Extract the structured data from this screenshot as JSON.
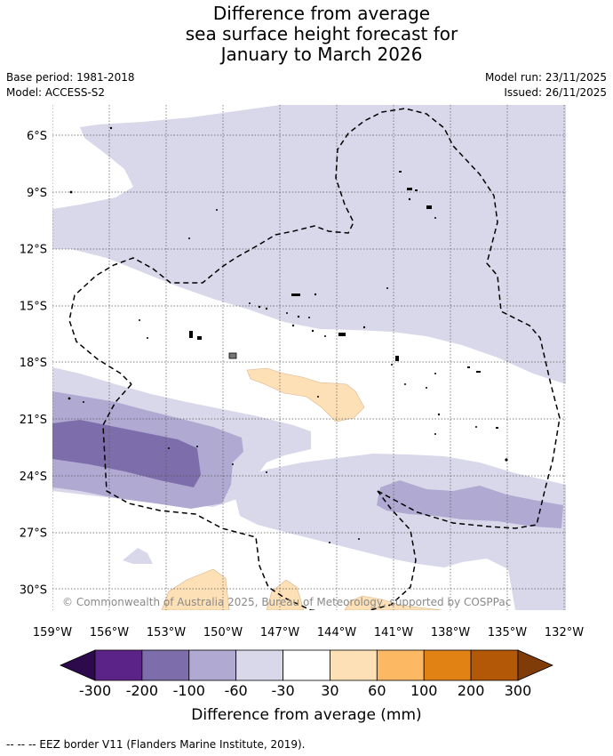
{
  "title_lines": [
    "Difference from average",
    "sea surface height forecast for",
    "January to March 2026"
  ],
  "base_period": "Base period: 1981-2018",
  "model": "Model: ACCESS-S2",
  "model_run": "Model run: 23/11/2025",
  "issued": "Issued: 26/11/2025",
  "copyright": "© Commonwealth of Australia 2025, Bureau of Meteorology, supported by COSPPac",
  "lat_labels": [
    "6°S",
    "9°S",
    "12°S",
    "15°S",
    "18°S",
    "21°S",
    "24°S",
    "27°S",
    "30°S"
  ],
  "lon_labels": [
    "159°W",
    "156°W",
    "153°W",
    "150°W",
    "147°W",
    "144°W",
    "141°W",
    "138°W",
    "135°W",
    "132°W"
  ],
  "colorbar": {
    "ticks": [
      "-300",
      "-200",
      "-100",
      "-60",
      "-30",
      "30",
      "60",
      "100",
      "200",
      "300"
    ],
    "colors": [
      "#2d0a4b",
      "#5b2388",
      "#7e6dab",
      "#b0a9d1",
      "#d8d8ea",
      "#ffffff",
      "#fee0b6",
      "#fdb863",
      "#e08214",
      "#b35806",
      "#7f3b08"
    ],
    "label": "Difference from average (mm)"
  },
  "footer": "--  --  -- EEZ border V11 (Flanders Marine Institute, 2019)."
}
